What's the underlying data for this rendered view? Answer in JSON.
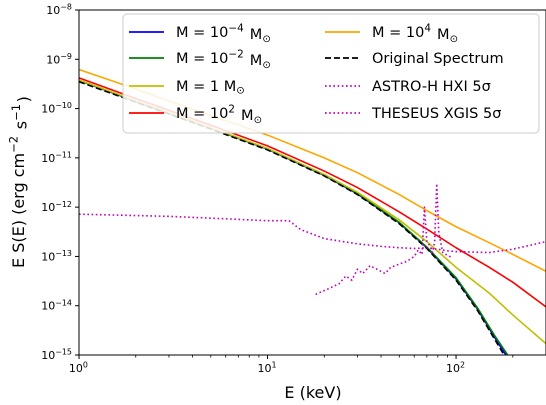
{
  "chart_data": {
    "type": "line",
    "xlabel": "E (keV)",
    "ylabel": "E S(E) (erg cm$^{-2}$ s$^{-1}$)",
    "xscale": "log",
    "yscale": "log",
    "xlim": [
      1,
      300
    ],
    "ylim": [
      1e-15,
      1e-08
    ],
    "x_ticks": [
      {
        "value": 1,
        "label": "10^0"
      },
      {
        "value": 10,
        "label": "10^1"
      },
      {
        "value": 100,
        "label": "10^2"
      }
    ],
    "y_ticks": [
      {
        "value": 1e-15,
        "label": "10^-15"
      },
      {
        "value": 1e-14,
        "label": "10^-14"
      },
      {
        "value": 1e-13,
        "label": "10^-13"
      },
      {
        "value": 1e-12,
        "label": "10^-12"
      },
      {
        "value": 1e-11,
        "label": "10^-11"
      },
      {
        "value": 1e-10,
        "label": "10^-10"
      },
      {
        "value": 1e-09,
        "label": "10^-9"
      },
      {
        "value": 1e-08,
        "label": "10^-8"
      }
    ],
    "legend_placement": "top-right",
    "series": [
      {
        "name": "M = 10^-4 M_sun",
        "color": "#0000ff",
        "style": "solid",
        "points": [
          [
            1,
            3.7e-10
          ],
          [
            2,
            1.4e-10
          ],
          [
            5,
            4e-11
          ],
          [
            10,
            1.5e-11
          ],
          [
            20,
            4.4e-12
          ],
          [
            30,
            1.85e-12
          ],
          [
            50,
            4.8e-13
          ],
          [
            70,
            1.5e-13
          ],
          [
            100,
            3.5e-14
          ],
          [
            130,
            8.5e-15
          ],
          [
            160,
            2.3e-15
          ],
          [
            200,
            6e-16
          ]
        ]
      },
      {
        "name": "M = 10^-2 M_sun",
        "color": "#008000",
        "style": "solid",
        "points": [
          [
            1,
            3.75e-10
          ],
          [
            2,
            1.42e-10
          ],
          [
            5,
            4.05e-11
          ],
          [
            10,
            1.52e-11
          ],
          [
            20,
            4.45e-12
          ],
          [
            30,
            1.9e-12
          ],
          [
            50,
            4.9e-13
          ],
          [
            70,
            1.55e-13
          ],
          [
            100,
            3.7e-14
          ],
          [
            130,
            9e-15
          ],
          [
            160,
            2.5e-15
          ],
          [
            200,
            7e-16
          ]
        ]
      },
      {
        "name": "M = 1 M_sun",
        "color": "#bfbf00",
        "style": "solid",
        "points": [
          [
            1,
            3.8e-10
          ],
          [
            2,
            1.45e-10
          ],
          [
            5,
            4.1e-11
          ],
          [
            10,
            1.55e-11
          ],
          [
            20,
            4.6e-12
          ],
          [
            30,
            2e-12
          ],
          [
            50,
            5.5e-13
          ],
          [
            70,
            2e-13
          ],
          [
            100,
            6e-14
          ],
          [
            150,
            1.8e-14
          ],
          [
            200,
            6.5e-15
          ],
          [
            300,
            1.7e-15
          ]
        ]
      },
      {
        "name": "M = 10^2 M_sun",
        "color": "#ff0000",
        "style": "solid",
        "points": [
          [
            1,
            4.2e-10
          ],
          [
            2,
            1.6e-10
          ],
          [
            5,
            4.6e-11
          ],
          [
            10,
            1.75e-11
          ],
          [
            20,
            5.4e-12
          ],
          [
            30,
            2.5e-12
          ],
          [
            50,
            8e-13
          ],
          [
            70,
            3.6e-13
          ],
          [
            100,
            1.5e-13
          ],
          [
            150,
            6e-14
          ],
          [
            200,
            3e-14
          ],
          [
            300,
            9.5e-15
          ]
        ]
      },
      {
        "name": "M = 10^4 M_sun",
        "color": "#ffa500",
        "style": "solid",
        "points": [
          [
            1,
            6.2e-10
          ],
          [
            2,
            2.5e-10
          ],
          [
            5,
            7.2e-11
          ],
          [
            10,
            2.9e-11
          ],
          [
            20,
            1e-11
          ],
          [
            30,
            5e-12
          ],
          [
            50,
            1.8e-12
          ],
          [
            70,
            8.5e-13
          ],
          [
            100,
            4e-13
          ],
          [
            150,
            1.9e-13
          ],
          [
            200,
            1.1e-13
          ],
          [
            300,
            5e-14
          ]
        ]
      },
      {
        "name": "Original Spectrum",
        "color": "#000000",
        "style": "dashed",
        "points": [
          [
            1,
            3.5e-10
          ],
          [
            2,
            1.35e-10
          ],
          [
            5,
            3.85e-11
          ],
          [
            10,
            1.45e-11
          ],
          [
            20,
            4.3e-12
          ],
          [
            30,
            1.8e-12
          ],
          [
            50,
            4.6e-13
          ],
          [
            70,
            1.45e-13
          ],
          [
            100,
            3.3e-14
          ],
          [
            130,
            8e-15
          ],
          [
            160,
            2.1e-15
          ],
          [
            190,
            7e-16
          ]
        ]
      },
      {
        "name": "ASTRO-H HXI 5σ",
        "color": "#bf00bf",
        "style": "dotted",
        "points": [
          [
            18,
            1.7e-14
          ],
          [
            21,
            2.2e-14
          ],
          [
            24,
            2.8e-14
          ],
          [
            26,
            4e-14
          ],
          [
            28,
            3.3e-14
          ],
          [
            30,
            5.5e-14
          ],
          [
            32,
            4.5e-14
          ],
          [
            35,
            6.5e-14
          ],
          [
            38,
            5.5e-14
          ],
          [
            42,
            4.5e-14
          ],
          [
            45,
            6e-14
          ],
          [
            50,
            7e-14
          ],
          [
            55,
            8e-14
          ],
          [
            60,
            1e-13
          ],
          [
            63,
            1.35e-13
          ],
          [
            66,
            1.1e-13
          ],
          [
            68,
            1e-12
          ],
          [
            70,
            2e-13
          ],
          [
            73,
            1.6e-13
          ],
          [
            75,
            1.2e-13
          ],
          [
            77,
            2e-13
          ],
          [
            79,
            3e-12
          ],
          [
            81,
            3e-13
          ],
          [
            85,
            1.2e-13
          ],
          [
            90,
            1.05e-13
          ],
          [
            95,
            9.5e-14
          ]
        ]
      },
      {
        "name": "THESEUS XGIS 5σ",
        "color": "#bf00bf",
        "style": "dotted",
        "points": [
          [
            1,
            7.2e-13
          ],
          [
            3,
            6.5e-13
          ],
          [
            6,
            5.8e-13
          ],
          [
            10,
            5.3e-13
          ],
          [
            13,
            5.3e-13
          ],
          [
            15,
            3.5e-13
          ],
          [
            20,
            2.3e-13
          ],
          [
            30,
            1.8e-13
          ],
          [
            40,
            1.6e-13
          ],
          [
            50,
            1.5e-13
          ],
          [
            60,
            1.45e-13
          ],
          [
            70,
            1.5e-13
          ],
          [
            80,
            1.4e-13
          ],
          [
            90,
            1.3e-13
          ],
          [
            100,
            1.25e-13
          ],
          [
            150,
            1.2e-13
          ],
          [
            200,
            1.4e-13
          ],
          [
            250,
            1.7e-13
          ],
          [
            300,
            2e-13
          ]
        ]
      }
    ]
  }
}
